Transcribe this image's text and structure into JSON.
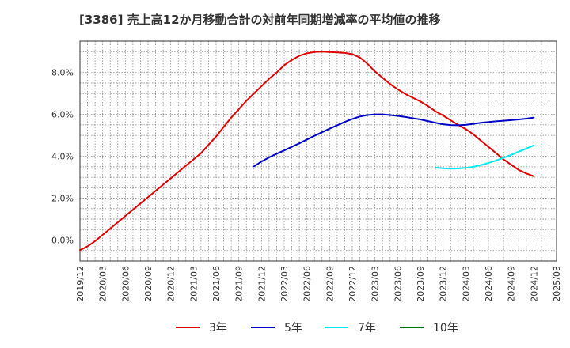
{
  "chart_data": {
    "type": "line",
    "title": "[3386]  売上高12か月移動合計の対前年同期増減率の平均値の推移",
    "xlabel": "",
    "ylabel": "",
    "x_ticks": [
      "2019/12",
      "2020/03",
      "2020/06",
      "2020/09",
      "2020/12",
      "2021/03",
      "2021/06",
      "2021/09",
      "2021/12",
      "2022/03",
      "2022/06",
      "2022/09",
      "2022/12",
      "2023/03",
      "2023/06",
      "2023/09",
      "2023/12",
      "2024/03",
      "2024/06",
      "2024/09",
      "2024/12",
      "2025/03"
    ],
    "y_ticks": [
      "0.0%",
      "2.0%",
      "4.0%",
      "6.0%",
      "8.0%"
    ],
    "y_tick_values": [
      0,
      2,
      4,
      6,
      8
    ],
    "ylim": [
      -1.0,
      9.5
    ],
    "grid": true,
    "legend_position": "bottom",
    "series": [
      {
        "name": "3年",
        "color": "#e00000",
        "x": [
          "2019/12",
          "2020/01",
          "2020/02",
          "2020/03",
          "2020/04",
          "2020/05",
          "2020/06",
          "2020/07",
          "2020/08",
          "2020/09",
          "2020/10",
          "2020/11",
          "2020/12",
          "2021/01",
          "2021/02",
          "2021/03",
          "2021/04",
          "2021/05",
          "2021/06",
          "2021/07",
          "2021/08",
          "2021/09",
          "2021/10",
          "2021/11",
          "2021/12",
          "2022/01",
          "2022/02",
          "2022/03",
          "2022/04",
          "2022/05",
          "2022/06",
          "2022/07",
          "2022/08",
          "2022/09",
          "2022/10",
          "2022/11",
          "2022/12",
          "2023/01",
          "2023/02",
          "2023/03",
          "2023/04",
          "2023/05",
          "2023/06",
          "2023/07",
          "2023/08",
          "2023/09",
          "2023/10",
          "2023/11",
          "2023/12",
          "2024/01",
          "2024/02",
          "2024/03",
          "2024/04",
          "2024/05",
          "2024/06",
          "2024/07",
          "2024/08",
          "2024/09",
          "2024/10",
          "2024/11",
          "2024/12"
        ],
        "values": [
          -0.48,
          -0.3,
          -0.05,
          0.25,
          0.55,
          0.85,
          1.15,
          1.45,
          1.75,
          2.05,
          2.35,
          2.65,
          2.95,
          3.25,
          3.55,
          3.85,
          4.15,
          4.55,
          4.95,
          5.4,
          5.85,
          6.25,
          6.65,
          7.0,
          7.35,
          7.7,
          8.0,
          8.35,
          8.6,
          8.8,
          8.92,
          8.98,
          9.0,
          8.98,
          8.96,
          8.94,
          8.88,
          8.72,
          8.42,
          8.05,
          7.75,
          7.45,
          7.2,
          6.98,
          6.8,
          6.62,
          6.4,
          6.15,
          5.95,
          5.72,
          5.5,
          5.3,
          5.05,
          4.75,
          4.45,
          4.15,
          3.85,
          3.6,
          3.35,
          3.18,
          3.05
        ]
      },
      {
        "name": "5年",
        "color": "#0000c8",
        "x": [
          "2021/11",
          "2021/12",
          "2022/01",
          "2022/02",
          "2022/03",
          "2022/04",
          "2022/05",
          "2022/06",
          "2022/07",
          "2022/08",
          "2022/09",
          "2022/10",
          "2022/11",
          "2022/12",
          "2023/01",
          "2023/02",
          "2023/03",
          "2023/04",
          "2023/05",
          "2023/06",
          "2023/07",
          "2023/08",
          "2023/09",
          "2023/10",
          "2023/11",
          "2023/12",
          "2024/01",
          "2024/02",
          "2024/03",
          "2024/04",
          "2024/05",
          "2024/06",
          "2024/07",
          "2024/08",
          "2024/09",
          "2024/10",
          "2024/11",
          "2024/12"
        ],
        "values": [
          3.52,
          3.75,
          3.95,
          4.12,
          4.28,
          4.45,
          4.62,
          4.8,
          4.98,
          5.15,
          5.32,
          5.48,
          5.64,
          5.78,
          5.9,
          5.97,
          6.0,
          6.0,
          5.97,
          5.93,
          5.88,
          5.82,
          5.76,
          5.68,
          5.6,
          5.53,
          5.49,
          5.48,
          5.5,
          5.55,
          5.6,
          5.64,
          5.67,
          5.7,
          5.73,
          5.76,
          5.8,
          5.85
        ]
      },
      {
        "name": "7年",
        "color": "#00e8f0",
        "x": [
          "2023/11",
          "2023/12",
          "2024/01",
          "2024/02",
          "2024/03",
          "2024/04",
          "2024/05",
          "2024/06",
          "2024/07",
          "2024/08",
          "2024/09",
          "2024/10",
          "2024/11",
          "2024/12"
        ],
        "values": [
          3.46,
          3.43,
          3.41,
          3.42,
          3.45,
          3.5,
          3.58,
          3.68,
          3.8,
          3.93,
          4.07,
          4.22,
          4.37,
          4.52
        ]
      },
      {
        "name": "10年",
        "color": "#007800",
        "x": [],
        "values": []
      }
    ]
  }
}
